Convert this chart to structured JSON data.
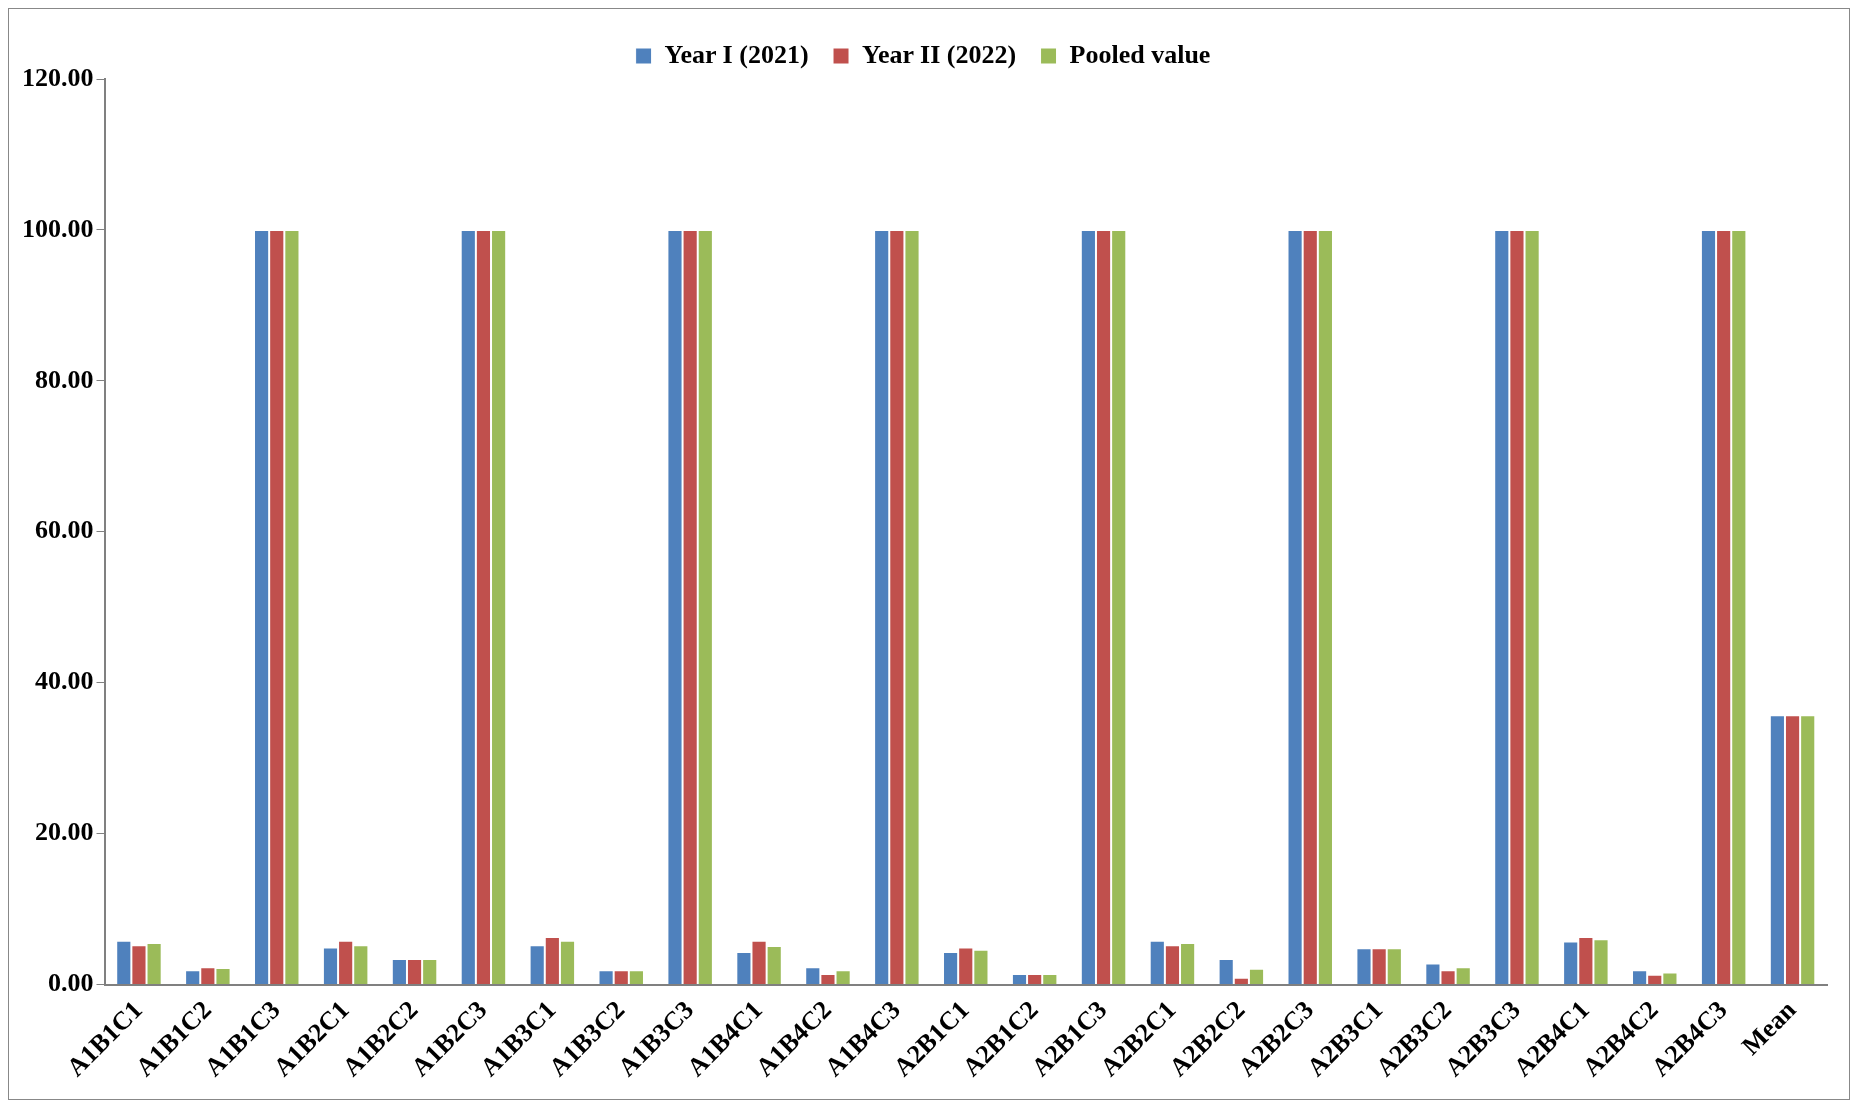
{
  "chart_data": {
    "type": "bar",
    "categories": [
      "A1B1C1",
      "A1B1C2",
      "A1B1C3",
      "A1B2C1",
      "A1B2C2",
      "A1B2C3",
      "A1B3C1",
      "A1B3C2",
      "A1B3C3",
      "A1B4C1",
      "A1B4C2",
      "A1B4C3",
      "A2B1C1",
      "A2B1C2",
      "A2B1C3",
      "A2B2C1",
      "A2B2C2",
      "A2B2C3",
      "A2B3C1",
      "A2B3C2",
      "A2B3C3",
      "A2B4C1",
      "A2B4C2",
      "A2B4C3",
      "Mean"
    ],
    "series": [
      {
        "name": "Year I (2021)",
        "color": "#4f81bd",
        "values": [
          5.8,
          1.9,
          100,
          4.9,
          3.4,
          100,
          5.2,
          1.9,
          100,
          4.3,
          2.3,
          100,
          4.3,
          1.4,
          100,
          5.8,
          3.4,
          100,
          4.8,
          2.8,
          100,
          5.7,
          1.9,
          100,
          35.7
        ]
      },
      {
        "name": "Year II (2022)",
        "color": "#c0504d",
        "values": [
          5.2,
          2.3,
          100,
          5.8,
          3.4,
          100,
          6.3,
          1.9,
          100,
          5.8,
          1.4,
          100,
          4.9,
          1.4,
          100,
          5.2,
          0.9,
          100,
          4.8,
          1.9,
          100,
          6.3,
          1.3,
          100,
          35.7
        ]
      },
      {
        "name": "Pooled value",
        "color": "#9bbb59",
        "values": [
          5.5,
          2.2,
          100,
          5.2,
          3.4,
          100,
          5.8,
          1.9,
          100,
          5.1,
          1.9,
          100,
          4.6,
          1.4,
          100,
          5.5,
          2.1,
          100,
          4.8,
          2.3,
          100,
          6.0,
          1.6,
          100,
          35.7
        ]
      }
    ],
    "ylim": [
      0,
      120
    ],
    "yticks": [
      {
        "value": 0,
        "label": "0.00"
      },
      {
        "value": 20,
        "label": "20.00"
      },
      {
        "value": 40,
        "label": "40.00"
      },
      {
        "value": 60,
        "label": "60.00"
      },
      {
        "value": 80,
        "label": "80.00"
      },
      {
        "value": 100,
        "label": "100.00"
      },
      {
        "value": 120,
        "label": "120.00"
      }
    ],
    "grid": false,
    "legend": "top"
  }
}
